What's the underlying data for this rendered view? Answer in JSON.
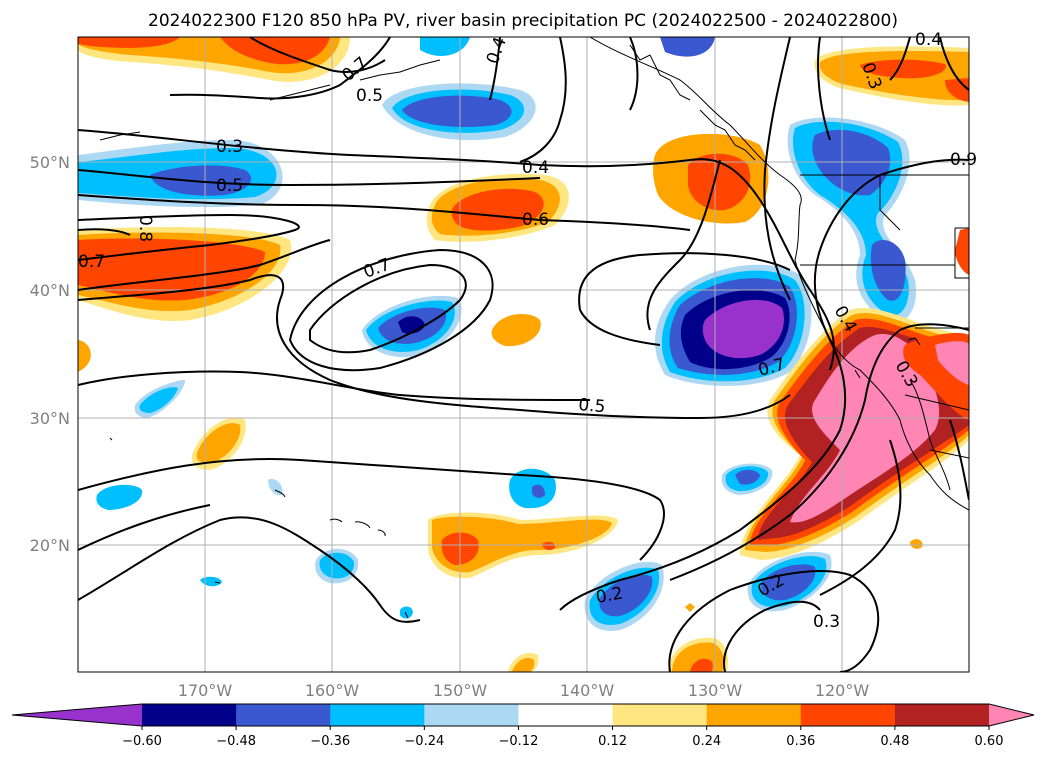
{
  "title": "2024022300 F120 850 hPa PV, river basin precipitation PC (2024022500 - 2024022800)",
  "map": {
    "lat_labels": [
      "50°N",
      "40°N",
      "30°N",
      "20°N"
    ],
    "lon_labels": [
      "170°W",
      "160°W",
      "150°W",
      "140°W",
      "130°W",
      "120°W"
    ],
    "contour_labels": [
      "0.3",
      "0.5",
      "0.4",
      "0.6",
      "0.8",
      "0.7",
      "0.7",
      "0.5",
      "0.7",
      "0.2",
      "0.2",
      "0.3",
      "0.5",
      "0.3",
      "0.4",
      "0.4",
      "0.4",
      "0.3",
      "0.7",
      "0.9"
    ]
  },
  "colorbar": {
    "ticks": [
      "−0.60",
      "−0.48",
      "−0.36",
      "−0.24",
      "−0.12",
      "0.12",
      "0.24",
      "0.36",
      "0.48",
      "0.60"
    ],
    "colors": [
      "#9932cc",
      "#00008b",
      "#3a58d0",
      "#00bfff",
      "#add8f3",
      "#ffffff",
      "#ffe680",
      "#ffa500",
      "#ff4500",
      "#b22222",
      "#ff85b5"
    ]
  },
  "colors": {
    "purple": "#9932cc",
    "navy": "#00008b",
    "royal_blue": "#3a58d0",
    "deep_sky": "#00bfff",
    "light_blue": "#add8f3",
    "light_yellow": "#ffe680",
    "orange": "#ffa500",
    "orange_red": "#ff4500",
    "firebrick": "#b22222",
    "pink": "#ff85b5"
  }
}
